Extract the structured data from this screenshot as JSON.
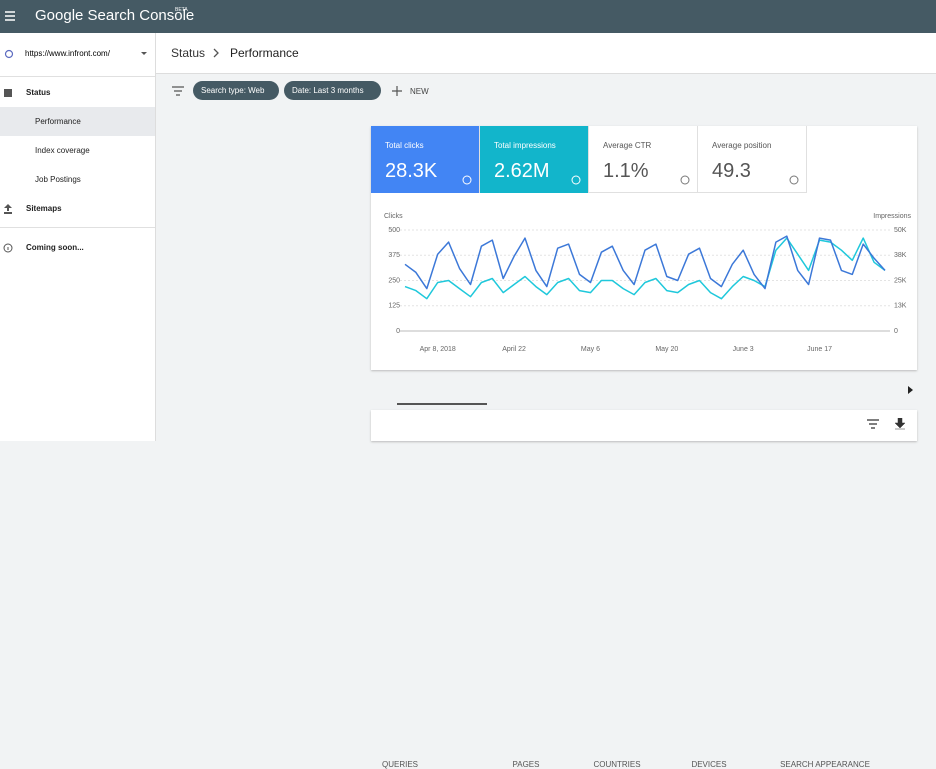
{
  "header": {
    "app_title": "Google Search Console",
    "badge": "BETA"
  },
  "sidebar": {
    "property": "https://www.infront.com/",
    "items": [
      "Status",
      "Performance",
      "Index coverage",
      "Job Postings",
      "Sitemaps",
      "Coming soon..."
    ]
  },
  "breadcrumb": [
    "Status",
    "Performance"
  ],
  "filters": [
    "Search type: Web",
    "Date: Last 3 months"
  ],
  "new_button": "NEW",
  "metrics": [
    {
      "label": "Total clicks",
      "value": "28.3K"
    },
    {
      "label": "Total impressions",
      "value": "2.62M"
    },
    {
      "label": "Average CTR",
      "value": "1.1%"
    },
    {
      "label": "Average position",
      "value": "49.3"
    }
  ],
  "chart_data": {
    "type": "line",
    "y_label": "Clicks",
    "y2_label": "Impressions",
    "categories": [
      null,
      null,
      null,
      "Apr 8, 2018",
      null,
      null,
      null,
      null,
      null,
      null,
      "April 22",
      null,
      null,
      null,
      null,
      null,
      null,
      "May 6",
      null,
      null,
      null,
      null,
      null,
      null,
      "May 20",
      null,
      null,
      null,
      null,
      null,
      null,
      "June 3",
      null,
      null,
      null,
      null,
      null,
      null,
      "June 17",
      null,
      null,
      null,
      null,
      null,
      null
    ],
    "series": [
      {
        "name": "Clicks",
        "color": "#3c78d8",
        "values": [
          330,
          290,
          210,
          380,
          440,
          310,
          230,
          420,
          450,
          260,
          370,
          460,
          300,
          220,
          410,
          430,
          280,
          240,
          390,
          420,
          300,
          230,
          400,
          430,
          270,
          250,
          380,
          410,
          260,
          220,
          330,
          400,
          280,
          210,
          440,
          470,
          300,
          230,
          460,
          450,
          300,
          280,
          430,
          360,
          300
        ]
      },
      {
        "name": "Impressions",
        "color": "#1fc8db",
        "axis": "y2",
        "values": [
          22000,
          20000,
          16000,
          24000,
          25000,
          21000,
          17000,
          24000,
          26000,
          19000,
          23000,
          27000,
          22000,
          18000,
          24000,
          26000,
          20000,
          19000,
          25000,
          25000,
          21000,
          18000,
          24000,
          26000,
          20000,
          19000,
          23000,
          25000,
          19000,
          16000,
          22000,
          27000,
          25000,
          22000,
          40000,
          46000,
          38000,
          30000,
          45000,
          44000,
          40000,
          35000,
          46000,
          34000,
          30000
        ]
      }
    ],
    "ylim": [
      0,
      500
    ],
    "yticks": [
      0,
      125,
      250,
      375,
      500
    ],
    "y2lim": [
      0,
      50000
    ],
    "y2ticks": [
      {
        "value": 0,
        "label": "0"
      },
      {
        "value": 12500,
        "label": "13K"
      },
      {
        "value": 25000,
        "label": "25K"
      },
      {
        "value": 37500,
        "label": "38K"
      },
      {
        "value": 50000,
        "label": "50K"
      }
    ],
    "grid": true
  },
  "tabs": [
    "QUERIES",
    "PAGES",
    "COUNTRIES",
    "DEVICES",
    "SEARCH APPEARANCE"
  ]
}
